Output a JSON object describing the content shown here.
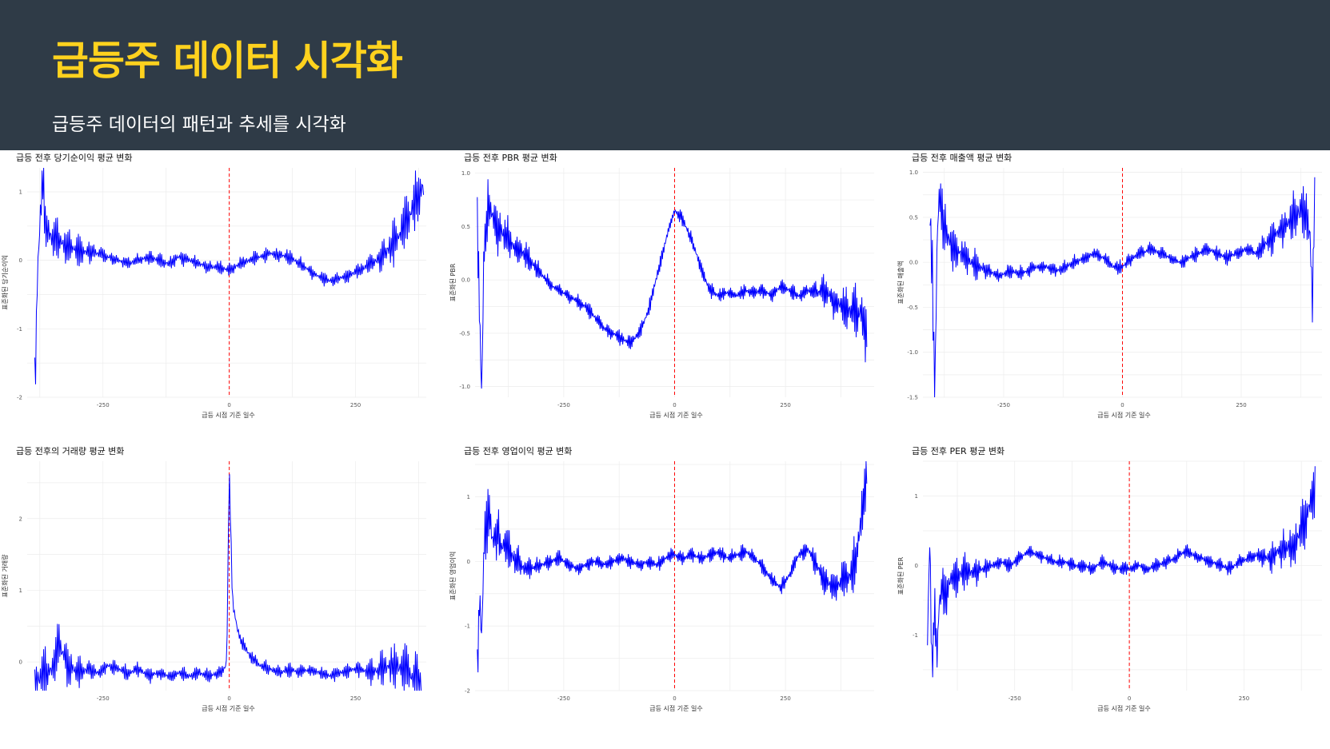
{
  "header": {
    "title": "급등주 데이터 시각화",
    "subtitle": "급등주 데이터의 패턴과 추세를 시각화",
    "bg_color": "#2f3b47",
    "title_color": "#ffd21e"
  },
  "style": {
    "line_color": "#0000ff",
    "ref_line_color": "#ff0000",
    "grid": true
  },
  "chart_data": [
    {
      "type": "line",
      "title": "급등 전후 당기순이익 평균 변화",
      "xlabel": "급등 시점 기준 일수",
      "ylabel": "표준화된 당기순이익",
      "xlim": [
        -400,
        390
      ],
      "ylim": [
        -2.0,
        1.35
      ],
      "yticks": [
        1,
        0,
        -1,
        -2
      ],
      "xticks": [
        -250,
        0,
        250
      ],
      "x_start": -385,
      "x_end": 385,
      "ref_x": 0,
      "series": [
        {
          "x": [
            -385,
            -380,
            -375,
            -370,
            -365,
            -360,
            -350,
            -340,
            -330,
            -320,
            -300,
            -280,
            -260,
            -240,
            -220,
            -200,
            -180,
            -160,
            -140,
            -120,
            -100,
            -80,
            -60,
            -40,
            -20,
            0,
            20,
            40,
            60,
            80,
            100,
            120,
            140,
            160,
            180,
            200,
            220,
            240,
            260,
            280,
            300,
            320,
            340,
            360,
            370,
            380,
            385
          ],
          "values": [
            -1.9,
            -0.3,
            0.5,
            1.2,
            0.6,
            0.4,
            0.35,
            0.3,
            0.25,
            0.2,
            0.15,
            0.12,
            0.1,
            0.05,
            0.0,
            -0.05,
            0.0,
            0.05,
            0.0,
            -0.05,
            0.05,
            0.0,
            -0.05,
            -0.1,
            -0.1,
            -0.15,
            -0.05,
            0.0,
            0.05,
            0.1,
            0.08,
            0.05,
            -0.05,
            -0.15,
            -0.25,
            -0.3,
            -0.25,
            -0.2,
            -0.15,
            -0.05,
            0.05,
            0.2,
            0.4,
            0.7,
            0.9,
            1.05,
            1.1
          ]
        }
      ]
    },
    {
      "type": "line",
      "title": "급등 전후 PBR 평균 변화",
      "xlabel": "급등 시점 기준 일수",
      "ylabel": "표준화된 PBR",
      "xlim": [
        -450,
        450
      ],
      "ylim": [
        -1.1,
        1.05
      ],
      "yticks": [
        1.0,
        0.5,
        0.0,
        -0.5,
        -1.0
      ],
      "xticks": [
        -250,
        0,
        250
      ],
      "x_start": -445,
      "x_end": 435,
      "ref_x": 0,
      "series": [
        {
          "x": [
            -445,
            -440,
            -435,
            -430,
            -420,
            -410,
            -400,
            -390,
            -380,
            -360,
            -340,
            -320,
            -300,
            -280,
            -260,
            -240,
            -220,
            -200,
            -180,
            -160,
            -140,
            -120,
            -100,
            -80,
            -60,
            -45,
            -30,
            -15,
            0,
            15,
            30,
            45,
            60,
            80,
            100,
            120,
            140,
            160,
            180,
            200,
            220,
            240,
            260,
            280,
            300,
            320,
            340,
            360,
            380,
            400,
            420,
            435
          ],
          "values": [
            0.5,
            -0.3,
            -1.1,
            0.3,
            0.7,
            0.6,
            0.5,
            0.45,
            0.4,
            0.3,
            0.25,
            0.15,
            0.05,
            -0.05,
            -0.1,
            -0.15,
            -0.2,
            -0.25,
            -0.35,
            -0.45,
            -0.5,
            -0.55,
            -0.6,
            -0.5,
            -0.3,
            -0.05,
            0.2,
            0.45,
            0.65,
            0.6,
            0.45,
            0.3,
            0.1,
            -0.1,
            -0.15,
            -0.12,
            -0.15,
            -0.1,
            -0.12,
            -0.1,
            -0.15,
            -0.05,
            -0.1,
            -0.15,
            -0.1,
            -0.12,
            -0.1,
            -0.2,
            -0.25,
            -0.3,
            -0.3,
            -0.55
          ]
        }
      ]
    },
    {
      "type": "line",
      "title": "급등 전후 매출액 평균 변화",
      "xlabel": "급등 시점 기준 일수",
      "ylabel": "표준화된 매출액",
      "xlim": [
        -420,
        420
      ],
      "ylim": [
        -1.5,
        1.05
      ],
      "yticks": [
        1.0,
        0.5,
        0.0,
        -0.5,
        -1.0,
        -1.5
      ],
      "xticks": [
        -250,
        0,
        250
      ],
      "x_start": -405,
      "x_end": 405,
      "ref_x": 0,
      "series": [
        {
          "x": [
            -405,
            -400,
            -395,
            -390,
            -385,
            -380,
            -370,
            -360,
            -340,
            -320,
            -300,
            -280,
            -260,
            -240,
            -220,
            -200,
            -180,
            -160,
            -140,
            -120,
            -100,
            -80,
            -60,
            -40,
            -20,
            0,
            20,
            40,
            60,
            80,
            100,
            120,
            140,
            160,
            180,
            200,
            220,
            240,
            260,
            280,
            300,
            320,
            340,
            360,
            380,
            395,
            400,
            405
          ],
          "values": [
            0.6,
            -0.2,
            -1.5,
            0.3,
            0.8,
            0.5,
            0.3,
            0.2,
            0.1,
            0.0,
            -0.05,
            -0.1,
            -0.15,
            -0.1,
            -0.12,
            -0.1,
            -0.05,
            -0.05,
            -0.1,
            -0.05,
            0.0,
            0.05,
            0.1,
            0.05,
            -0.05,
            -0.05,
            0.05,
            0.1,
            0.15,
            0.1,
            0.05,
            0.0,
            0.05,
            0.1,
            0.15,
            0.1,
            0.05,
            0.1,
            0.15,
            0.1,
            0.2,
            0.3,
            0.4,
            0.5,
            0.6,
            0.3,
            -0.5,
            0.9
          ]
        }
      ]
    },
    {
      "type": "line",
      "title": "급등 전후의 거래량 평균 변화",
      "xlabel": "급등 시점 기준 일수",
      "ylabel": "표준화된 거래량",
      "xlim": [
        -400,
        390
      ],
      "ylim": [
        -0.4,
        2.8
      ],
      "yticks": [
        2,
        1,
        0
      ],
      "xticks": [
        -250,
        0,
        250
      ],
      "x_start": -385,
      "x_end": 380,
      "ref_x": 0,
      "series": [
        {
          "x": [
            -385,
            -370,
            -350,
            -340,
            -320,
            -300,
            -280,
            -260,
            -240,
            -220,
            -200,
            -180,
            -160,
            -140,
            -120,
            -100,
            -80,
            -60,
            -40,
            -20,
            -10,
            -5,
            0,
            3,
            6,
            10,
            15,
            20,
            30,
            40,
            60,
            80,
            100,
            120,
            140,
            160,
            180,
            200,
            220,
            240,
            260,
            280,
            300,
            320,
            340,
            360,
            380
          ],
          "values": [
            -0.3,
            -0.2,
            -0.1,
            0.3,
            -0.05,
            -0.15,
            -0.1,
            -0.15,
            -0.05,
            -0.1,
            -0.15,
            -0.1,
            -0.2,
            -0.15,
            -0.2,
            -0.15,
            -0.2,
            -0.15,
            -0.2,
            -0.15,
            -0.1,
            0.0,
            2.7,
            1.8,
            0.9,
            0.7,
            0.5,
            0.35,
            0.2,
            0.1,
            -0.05,
            -0.1,
            -0.15,
            -0.1,
            -0.15,
            -0.1,
            -0.15,
            -0.2,
            -0.15,
            -0.1,
            -0.1,
            -0.15,
            -0.1,
            -0.05,
            -0.1,
            -0.2,
            -0.3
          ]
        }
      ]
    },
    {
      "type": "line",
      "title": "급등 전후 영업이익 평균 변화",
      "xlabel": "급등 시점 기준 일수",
      "ylabel": "표준화된 영업이익",
      "xlim": [
        -450,
        450
      ],
      "ylim": [
        -2.0,
        1.55
      ],
      "yticks": [
        1,
        0,
        -1,
        -2
      ],
      "xticks": [
        -250,
        0,
        250
      ],
      "x_start": -445,
      "x_end": 435,
      "ref_x": 0,
      "series": [
        {
          "x": [
            -445,
            -440,
            -435,
            -430,
            -420,
            -410,
            -400,
            -390,
            -380,
            -360,
            -340,
            -320,
            -300,
            -280,
            -260,
            -240,
            -220,
            -200,
            -180,
            -160,
            -140,
            -120,
            -100,
            -80,
            -60,
            -40,
            -20,
            0,
            20,
            40,
            60,
            80,
            100,
            120,
            140,
            160,
            180,
            200,
            220,
            240,
            260,
            280,
            300,
            320,
            340,
            360,
            380,
            400,
            410,
            420,
            430,
            435
          ],
          "values": [
            -1.9,
            -0.5,
            -1.2,
            0.2,
            0.8,
            0.3,
            0.5,
            0.2,
            0.3,
            0.0,
            -0.1,
            -0.1,
            -0.05,
            0.0,
            0.05,
            -0.05,
            -0.1,
            -0.05,
            0.0,
            -0.05,
            0.0,
            0.05,
            0.0,
            -0.05,
            0.0,
            -0.05,
            0.05,
            0.1,
            0.05,
            0.1,
            0.05,
            0.1,
            0.15,
            0.05,
            0.1,
            0.15,
            0.05,
            -0.1,
            -0.3,
            -0.4,
            -0.2,
            0.1,
            0.2,
            -0.05,
            -0.3,
            -0.4,
            -0.3,
            -0.2,
            0.1,
            0.6,
            1.2,
            1.6
          ]
        }
      ]
    },
    {
      "type": "line",
      "title": "급등 전후 PER 평균 변화",
      "xlabel": "급등 시점 기준 일수",
      "ylabel": "표준화된 PER",
      "xlim": [
        -450,
        420
      ],
      "ylim": [
        -1.8,
        1.5
      ],
      "yticks": [
        1,
        0,
        -1
      ],
      "xticks": [
        -250,
        0,
        250
      ],
      "x_start": -440,
      "x_end": 405,
      "ref_x": 0,
      "series": [
        {
          "x": [
            -440,
            -435,
            -430,
            -425,
            -420,
            -415,
            -410,
            -400,
            -390,
            -380,
            -360,
            -340,
            -320,
            -300,
            -280,
            -260,
            -240,
            -220,
            -200,
            -180,
            -160,
            -140,
            -120,
            -100,
            -80,
            -60,
            -40,
            -20,
            0,
            20,
            40,
            60,
            80,
            100,
            120,
            140,
            160,
            180,
            200,
            220,
            240,
            260,
            280,
            300,
            320,
            340,
            360,
            380,
            390,
            400,
            405
          ],
          "values": [
            -1.0,
            0.4,
            -1.7,
            -0.5,
            -1.4,
            -0.6,
            -0.3,
            -0.4,
            -0.2,
            -0.15,
            -0.1,
            -0.1,
            -0.05,
            0.0,
            0.05,
            0.0,
            0.1,
            0.2,
            0.15,
            0.1,
            0.05,
            0.05,
            0.0,
            0.0,
            -0.05,
            0.05,
            0.0,
            -0.05,
            -0.05,
            0.0,
            -0.05,
            0.0,
            0.05,
            0.1,
            0.2,
            0.15,
            0.1,
            0.05,
            0.0,
            -0.05,
            0.05,
            0.1,
            0.15,
            0.1,
            0.2,
            0.25,
            0.3,
            0.6,
            0.8,
            1.0,
            1.0
          ]
        }
      ]
    }
  ]
}
